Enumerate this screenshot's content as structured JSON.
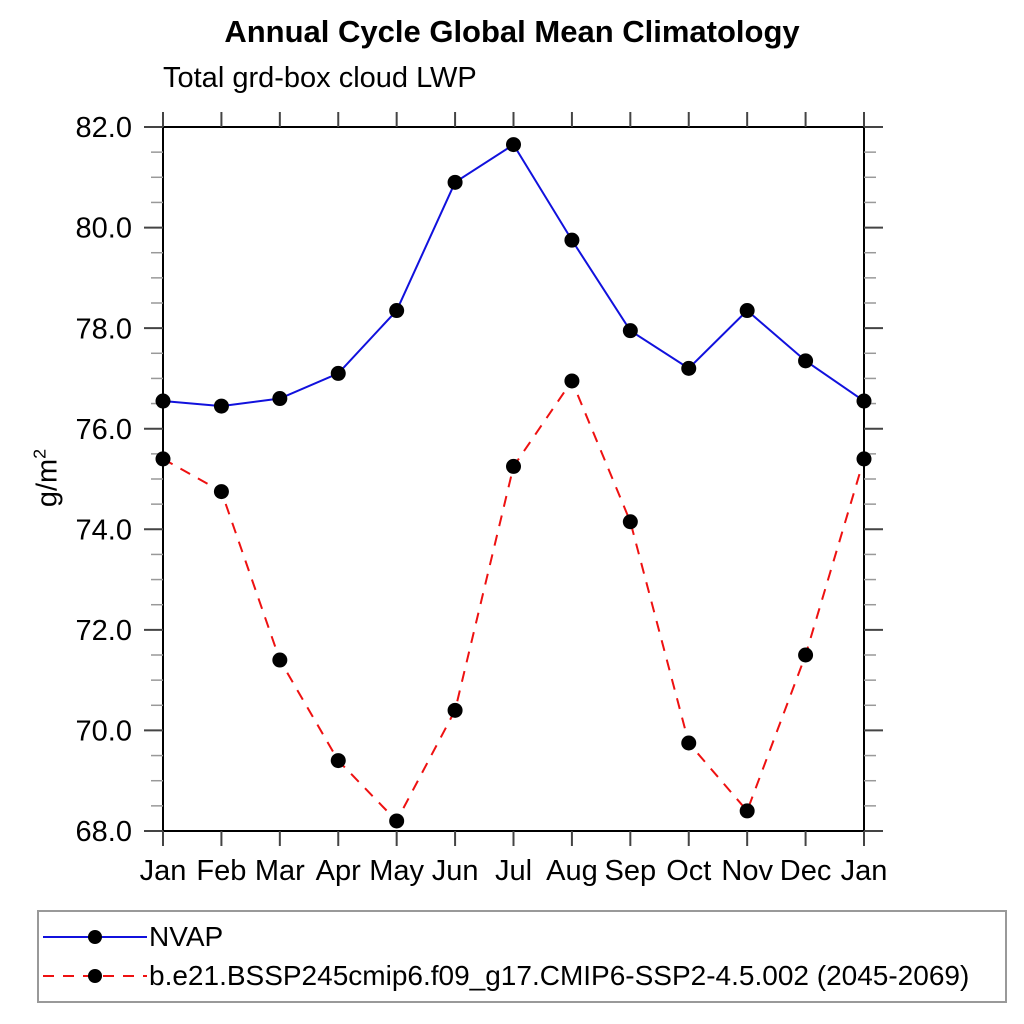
{
  "title": "Annual Cycle Global Mean Climatology",
  "subtitle": "Total grd-box cloud LWP",
  "ylabel": {
    "text": "g/m",
    "sup": "2"
  },
  "chart_data": {
    "type": "line",
    "title": "Annual Cycle Global Mean Climatology",
    "subtitle": "Total grd-box cloud LWP",
    "xlabel": "",
    "ylabel": "g/m^2",
    "categories": [
      "Jan",
      "Feb",
      "Mar",
      "Apr",
      "May",
      "Jun",
      "Jul",
      "Aug",
      "Sep",
      "Oct",
      "Nov",
      "Dec",
      "Jan"
    ],
    "ylim": [
      68.0,
      82.0
    ],
    "ytick_step": 2.0,
    "ytick_minor_step": 0.5,
    "ytick_label_format": "one-decimal",
    "grid": false,
    "legend_position": "bottom-box",
    "axis_color": "#000000",
    "tick_color": "#444444",
    "minor_tick_color": "#999999",
    "marker_color": "#000000",
    "series": [
      {
        "name": "NVAP",
        "color": "#1111dd",
        "line_style": "solid",
        "marker": "filled-circle",
        "values": [
          76.55,
          76.45,
          76.6,
          77.1,
          78.35,
          80.9,
          81.65,
          79.75,
          77.95,
          77.2,
          78.35,
          77.35,
          76.55
        ]
      },
      {
        "name": "b.e21.BSSP245cmip6.f09_g17.CMIP6-SSP2-4.5.002 (2045-2069)",
        "color": "#ee1111",
        "line_style": "dashed",
        "marker": "filled-circle",
        "values": [
          75.4,
          74.75,
          71.4,
          69.4,
          68.2,
          70.4,
          75.25,
          76.95,
          74.15,
          69.75,
          68.4,
          71.5,
          75.4
        ]
      }
    ]
  }
}
